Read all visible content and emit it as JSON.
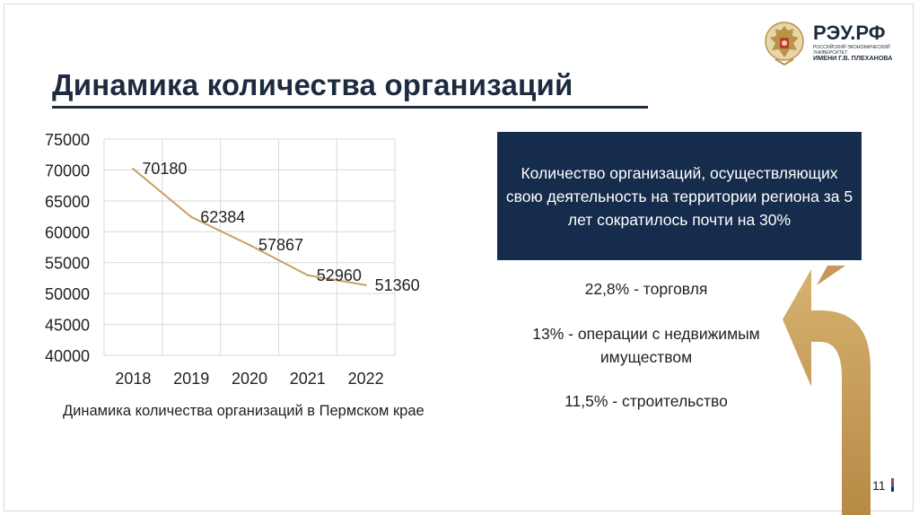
{
  "slide": {
    "title": "Динамика количества организаций",
    "page_number": "11"
  },
  "logo": {
    "name": "РЭУ.РФ",
    "subtitle": "РОССИЙСКИЙ ЭКОНОМИЧЕСКИЙ УНИВЕРСИТЕТ",
    "subtitle2": "ИМЕНИ Г.В. ПЛЕХАНОВА",
    "icon": "coat-of-arms-emblem"
  },
  "chart_data": {
    "type": "line",
    "categories": [
      "2018",
      "2019",
      "2020",
      "2021",
      "2022"
    ],
    "series": [
      {
        "values": [
          70180,
          62384,
          57867,
          52960,
          51360
        ],
        "color": "#c9a063"
      }
    ],
    "data_labels": [
      "70180",
      "62384",
      "57867",
      "52960",
      "51360"
    ],
    "y_ticks": [
      "40000",
      "45000",
      "50000",
      "55000",
      "60000",
      "65000",
      "70000",
      "75000"
    ],
    "ylim": [
      40000,
      75000
    ],
    "grid": true,
    "legend": "none",
    "title": "",
    "xlabel": "",
    "ylabel": ""
  },
  "chart_caption": "Динамика количества организаций в Пермском крае",
  "info_box": {
    "text": "Количество организаций, осуществляющих свою деятельность на территории региона за 5 лет сократилось почти на 30%"
  },
  "sectors": [
    "22,8% - торговля",
    "13% - операции с недвижимым имуществом",
    "11,5% - строительство"
  ],
  "colors": {
    "navy": "#152c4c",
    "gold": "#c49a5a",
    "line": "#c9a063",
    "text": "#222222"
  },
  "decor": {
    "arrow_icon": "gold-turn-arrow-icon"
  }
}
